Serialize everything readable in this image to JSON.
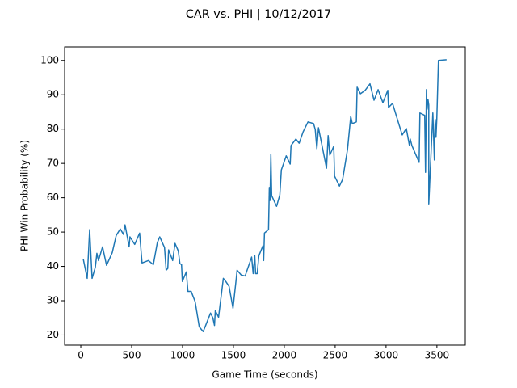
{
  "chart_data": {
    "type": "line",
    "title": "CAR vs. PHI | 10/12/2017",
    "x_label": "Game Time (seconds)",
    "y_label": "PHI Win Probability (%)",
    "xlim": [
      -159,
      3779
    ],
    "ylim": [
      17.05,
      103.95
    ],
    "xticks": [
      0,
      500,
      1000,
      1500,
      2000,
      2500,
      3000,
      3500
    ],
    "yticks": [
      20,
      30,
      40,
      50,
      60,
      70,
      80,
      90,
      100
    ],
    "grid": false,
    "series": [
      {
        "color": "#1f77b4",
        "x": [
          24,
          63,
          87,
          111,
          143,
          158,
          174,
          214,
          253,
          309,
          348,
          388,
          420,
          435,
          475,
          483,
          530,
          578,
          602,
          665,
          713,
          752,
          776,
          823,
          839,
          855,
          863,
          903,
          926,
          958,
          974,
          990,
          998,
          1037,
          1053,
          1085,
          1124,
          1164,
          1203,
          1275,
          1298,
          1314,
          1322,
          1354,
          1401,
          1425,
          1457,
          1496,
          1528,
          1536,
          1576,
          1615,
          1679,
          1694,
          1710,
          1718,
          1734,
          1750,
          1790,
          1797,
          1805,
          1845,
          1853,
          1860,
          1868,
          1876,
          1924,
          1956,
          1971,
          2019,
          2058,
          2066,
          2114,
          2146,
          2185,
          2233,
          2288,
          2304,
          2320,
          2336,
          2415,
          2431,
          2447,
          2486,
          2494,
          2542,
          2573,
          2621,
          2653,
          2668,
          2708,
          2716,
          2748,
          2795,
          2842,
          2882,
          2922,
          2969,
          3017,
          3024,
          3064,
          3112,
          3159,
          3199,
          3230,
          3238,
          3254,
          3325,
          3333,
          3380,
          3388,
          3397,
          3404,
          3412,
          3420,
          3420,
          3460,
          3475,
          3483,
          3491,
          3499,
          3515,
          3595
        ],
        "values": [
          42.2,
          36.5,
          50.7,
          36.5,
          39.8,
          43.8,
          41.7,
          45.7,
          40.3,
          44,
          49,
          50.9,
          49.3,
          52.1,
          45.7,
          48.6,
          46.4,
          49.7,
          41,
          41.7,
          40.5,
          46.9,
          48.6,
          45.5,
          38.9,
          39.4,
          44.8,
          41.7,
          46.7,
          44.5,
          40.8,
          40.5,
          35.6,
          38.4,
          32.7,
          32.7,
          29.7,
          22.4,
          21,
          26.4,
          25,
          22.8,
          27.1,
          25.2,
          36.5,
          35.6,
          34.2,
          27.8,
          36.5,
          38.9,
          37.5,
          37.2,
          42.7,
          37.9,
          43.1,
          37.9,
          37.9,
          43.1,
          46,
          41.7,
          49.7,
          50.7,
          63,
          59.2,
          72.6,
          60.6,
          57.5,
          60.8,
          68.1,
          72.2,
          69.8,
          75.2,
          77.1,
          75.9,
          79.2,
          82.1,
          81.6,
          79.9,
          74.3,
          80.4,
          68.6,
          78.1,
          72.4,
          75,
          66.3,
          63.4,
          65.3,
          74,
          83.7,
          81.6,
          82.1,
          92.2,
          90.3,
          91.3,
          93.2,
          88.4,
          91.5,
          87.7,
          91.3,
          86.3,
          87.5,
          82.8,
          78.3,
          80.2,
          75.2,
          77.1,
          75.2,
          70.3,
          84.7,
          84,
          67.4,
          91.5,
          85.8,
          88.7,
          87,
          58.2,
          84.7,
          71,
          82.8,
          77.6,
          83,
          100,
          100.2
        ]
      }
    ]
  }
}
